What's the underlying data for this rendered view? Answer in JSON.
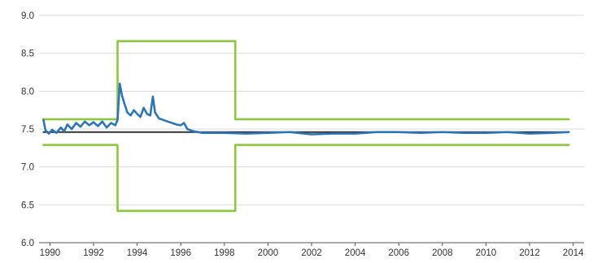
{
  "chart_data": {
    "type": "line",
    "title": "",
    "xlabel": "",
    "ylabel": "",
    "xlim": [
      1989.5,
      2014.5
    ],
    "ylim": [
      6.0,
      9.0
    ],
    "grid": "horizontal",
    "x_ticks": [
      "1990",
      "1992",
      "1994",
      "1996",
      "1998",
      "2000",
      "2002",
      "2004",
      "2006",
      "2008",
      "2010",
      "2012",
      "2014"
    ],
    "y_ticks": [
      "6.0",
      "6.5",
      "7.0",
      "7.5",
      "8.0",
      "8.5",
      "9.0"
    ],
    "colors": {
      "band": "#8dc63f",
      "rate": "#2e75b6",
      "central": "#333333",
      "grid": "#d9d9d9",
      "axis": "#555555"
    },
    "series": [
      {
        "role": "central-rate",
        "points": [
          [
            1989.7,
            7.46
          ],
          [
            2013.8,
            7.46
          ]
        ]
      },
      {
        "role": "upper-band",
        "points": [
          [
            1989.7,
            7.63
          ],
          [
            1993.1,
            7.63
          ],
          [
            1993.1,
            8.66
          ],
          [
            1998.5,
            8.66
          ],
          [
            1998.5,
            7.63
          ],
          [
            2013.8,
            7.63
          ]
        ]
      },
      {
        "role": "lower-band",
        "points": [
          [
            1989.7,
            7.29
          ],
          [
            1993.1,
            7.29
          ],
          [
            1993.1,
            6.42
          ],
          [
            1998.5,
            6.42
          ],
          [
            1998.5,
            7.29
          ],
          [
            2013.8,
            7.29
          ]
        ]
      },
      {
        "role": "exchange-rate",
        "points": [
          [
            1989.7,
            7.62
          ],
          [
            1989.8,
            7.48
          ],
          [
            1989.95,
            7.44
          ],
          [
            1990.1,
            7.49
          ],
          [
            1990.3,
            7.45
          ],
          [
            1990.5,
            7.52
          ],
          [
            1990.65,
            7.47
          ],
          [
            1990.8,
            7.56
          ],
          [
            1991.0,
            7.5
          ],
          [
            1991.2,
            7.58
          ],
          [
            1991.4,
            7.53
          ],
          [
            1991.6,
            7.6
          ],
          [
            1991.8,
            7.55
          ],
          [
            1992.0,
            7.59
          ],
          [
            1992.2,
            7.54
          ],
          [
            1992.4,
            7.6
          ],
          [
            1992.6,
            7.52
          ],
          [
            1992.8,
            7.58
          ],
          [
            1993.0,
            7.55
          ],
          [
            1993.1,
            7.62
          ],
          [
            1993.2,
            8.1
          ],
          [
            1993.3,
            7.95
          ],
          [
            1993.4,
            7.85
          ],
          [
            1993.55,
            7.72
          ],
          [
            1993.7,
            7.68
          ],
          [
            1993.85,
            7.75
          ],
          [
            1994.0,
            7.7
          ],
          [
            1994.15,
            7.66
          ],
          [
            1994.3,
            7.78
          ],
          [
            1994.45,
            7.7
          ],
          [
            1994.6,
            7.68
          ],
          [
            1994.72,
            7.93
          ],
          [
            1994.82,
            7.72
          ],
          [
            1995.0,
            7.64
          ],
          [
            1995.2,
            7.62
          ],
          [
            1995.4,
            7.6
          ],
          [
            1995.6,
            7.58
          ],
          [
            1995.8,
            7.56
          ],
          [
            1996.0,
            7.55
          ],
          [
            1996.15,
            7.58
          ],
          [
            1996.3,
            7.5
          ],
          [
            1996.6,
            7.47
          ],
          [
            1997.0,
            7.45
          ],
          [
            1998.0,
            7.45
          ],
          [
            1999.0,
            7.44
          ],
          [
            2000.0,
            7.45
          ],
          [
            2001.0,
            7.46
          ],
          [
            2002.0,
            7.43
          ],
          [
            2003.0,
            7.44
          ],
          [
            2004.0,
            7.44
          ],
          [
            2005.0,
            7.46
          ],
          [
            2006.0,
            7.46
          ],
          [
            2007.0,
            7.45
          ],
          [
            2008.0,
            7.46
          ],
          [
            2009.0,
            7.45
          ],
          [
            2010.0,
            7.45
          ],
          [
            2011.0,
            7.46
          ],
          [
            2012.0,
            7.44
          ],
          [
            2013.0,
            7.45
          ],
          [
            2013.8,
            7.46
          ]
        ]
      }
    ]
  }
}
